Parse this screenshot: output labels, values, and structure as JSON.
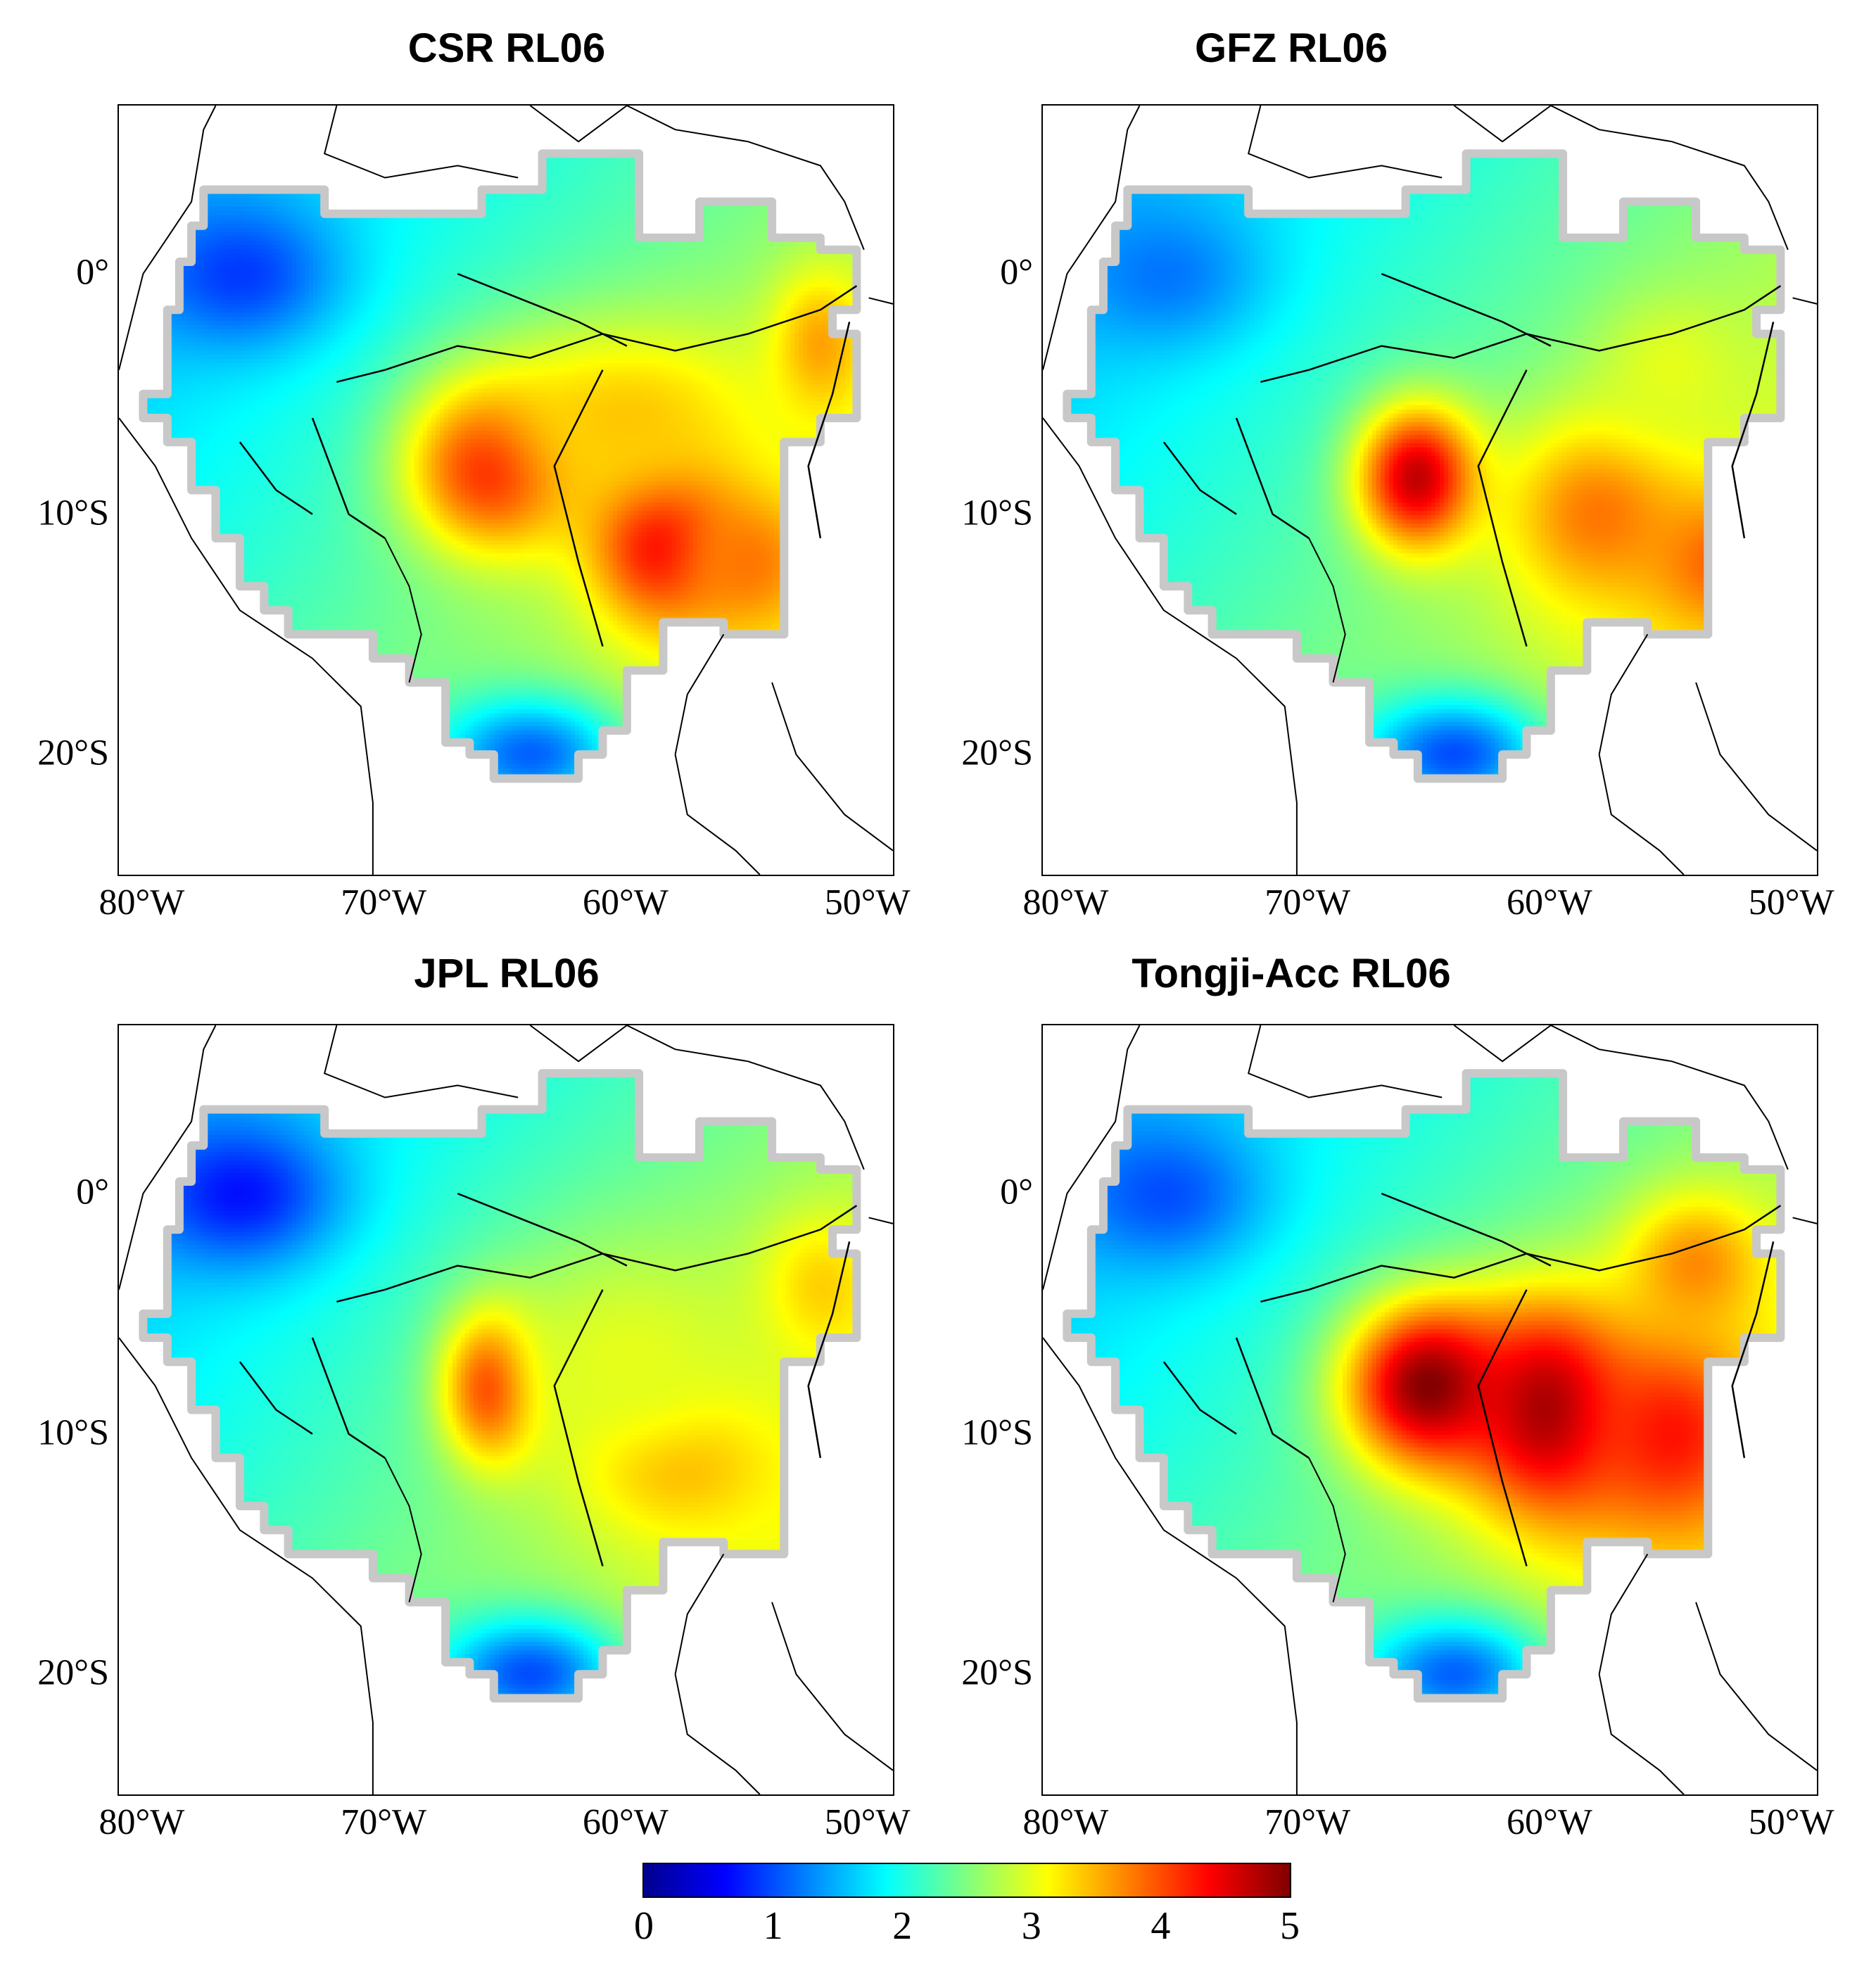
{
  "figure": {
    "panels": [
      {
        "id": "csr",
        "title": "CSR RL06",
        "blobs": [
          [
            -65.5,
            -8.0,
            4.4,
            3.5,
            3.5
          ],
          [
            -58.5,
            -11.0,
            4.6,
            3.0,
            3.5
          ],
          [
            -52.0,
            -3.0,
            3.6,
            2.0,
            3.0
          ],
          [
            -60.0,
            -6.0,
            3.4,
            6.0,
            4.0
          ],
          [
            -55.0,
            -12.0,
            3.8,
            3.0,
            3.0
          ],
          [
            -76.0,
            0.0,
            0.9,
            4.0,
            3.0
          ],
          [
            -64.0,
            -20.0,
            1.1,
            4.0,
            2.5
          ]
        ]
      },
      {
        "id": "gfz",
        "title": "GFZ RL06",
        "blobs": [
          [
            -65.5,
            -8.5,
            4.7,
            2.5,
            3.0
          ],
          [
            -58.0,
            -10.0,
            3.8,
            4.0,
            4.0
          ],
          [
            -53.0,
            -12.0,
            3.9,
            3.0,
            3.0
          ],
          [
            -55.0,
            -4.0,
            3.0,
            3.0,
            3.0
          ],
          [
            -76.0,
            0.0,
            1.2,
            4.0,
            3.0
          ],
          [
            -64.0,
            -20.0,
            1.0,
            4.0,
            2.5
          ]
        ]
      },
      {
        "id": "jpl",
        "title": "JPL RL06",
        "blobs": [
          [
            -65.5,
            -8.0,
            4.6,
            2.0,
            3.0
          ],
          [
            -58.0,
            -11.0,
            3.7,
            4.0,
            3.0
          ],
          [
            -52.0,
            -4.0,
            3.4,
            2.5,
            3.0
          ],
          [
            -60.0,
            -7.0,
            3.0,
            6.0,
            5.0
          ],
          [
            -76.0,
            0.0,
            0.7,
            4.0,
            3.0
          ],
          [
            -64.0,
            -20.0,
            1.0,
            4.0,
            2.5
          ]
        ]
      },
      {
        "id": "tongji",
        "title": "Tongji-Acc RL06",
        "blobs": [
          [
            -65.0,
            -8.0,
            5.0,
            3.5,
            3.5
          ],
          [
            -60.0,
            -9.0,
            4.9,
            3.5,
            4.5
          ],
          [
            -55.0,
            -10.0,
            4.3,
            4.0,
            4.5
          ],
          [
            -54.0,
            -3.0,
            3.7,
            3.0,
            3.0
          ],
          [
            -76.0,
            0.0,
            1.0,
            4.0,
            3.0
          ],
          [
            -64.0,
            -20.0,
            1.1,
            4.0,
            2.5
          ]
        ]
      }
    ],
    "x_axis": {
      "ticks": [
        -80,
        -70,
        -60,
        -50
      ],
      "labels": [
        "80°W",
        "70°W",
        "60°W",
        "50°W"
      ],
      "range": [
        -81,
        -49
      ]
    },
    "y_axis": {
      "ticks": [
        0,
        -10,
        -20
      ],
      "labels": [
        "0°",
        "10°S",
        "20°S"
      ],
      "range": [
        -25,
        7
      ]
    },
    "colorbar": {
      "min": 0,
      "max": 5,
      "ticks": [
        0,
        1,
        2,
        3,
        4,
        5
      ],
      "labels": [
        "0",
        "1",
        "2",
        "3",
        "4",
        "5"
      ],
      "colormap": [
        "#00008f",
        "#0000ff",
        "#0080ff",
        "#00ffff",
        "#80ff80",
        "#ffff00",
        "#ff8000",
        "#ff0000",
        "#800000"
      ]
    },
    "colors": {
      "basin_outline": "#c8c8c8",
      "coastline": "#000000",
      "background": "#ffffff"
    }
  }
}
